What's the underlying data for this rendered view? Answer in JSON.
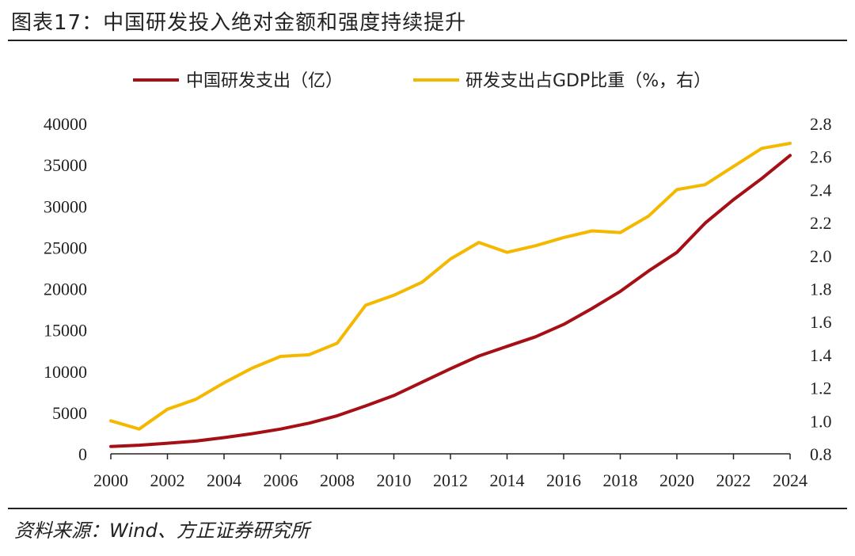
{
  "header": {
    "title": "图表17：中国研发投入绝对金额和强度持续提升"
  },
  "footer": {
    "source": "资料来源：Wind、方正证券研究所"
  },
  "colors": {
    "series_rd": "#A50F15",
    "series_gdp": "#F5B800",
    "axis": "#222222"
  },
  "chart_data": {
    "type": "line",
    "title": "",
    "x": [
      2000,
      2001,
      2002,
      2003,
      2004,
      2005,
      2006,
      2007,
      2008,
      2009,
      2010,
      2011,
      2012,
      2013,
      2014,
      2015,
      2016,
      2017,
      2018,
      2019,
      2020,
      2021,
      2022,
      2023,
      2024
    ],
    "x_ticks": [
      "2000",
      "2002",
      "2004",
      "2006",
      "2008",
      "2010",
      "2012",
      "2014",
      "2016",
      "2018",
      "2020",
      "2022",
      "2024"
    ],
    "y_left": {
      "range": [
        0,
        40000
      ],
      "ticks": [
        "0",
        "5000",
        "10000",
        "15000",
        "20000",
        "25000",
        "30000",
        "35000",
        "40000"
      ]
    },
    "y_right": {
      "range": [
        0.8,
        2.8
      ],
      "ticks": [
        "0.8",
        "1.0",
        "1.2",
        "1.4",
        "1.6",
        "1.8",
        "2.0",
        "2.2",
        "2.4",
        "2.6",
        "2.8"
      ]
    },
    "legend_position": "top",
    "grid": false,
    "series": [
      {
        "name": "中国研发支出（亿）",
        "axis": "left",
        "color": "#A50F15",
        "values": [
          896,
          1043,
          1288,
          1540,
          1966,
          2450,
          3003,
          3710,
          4616,
          5802,
          7063,
          8687,
          10298,
          11847,
          13016,
          14170,
          15677,
          17606,
          19678,
          22144,
          24393,
          27956,
          30783,
          33357,
          36130
        ]
      },
      {
        "name": "研发支出占GDP比重（%，右）",
        "axis": "right",
        "color": "#F5B800",
        "values": [
          1.0,
          0.95,
          1.07,
          1.13,
          1.23,
          1.32,
          1.39,
          1.4,
          1.47,
          1.7,
          1.76,
          1.84,
          1.98,
          2.08,
          2.02,
          2.06,
          2.11,
          2.15,
          2.14,
          2.24,
          2.4,
          2.43,
          2.54,
          2.65,
          2.68
        ]
      }
    ]
  }
}
